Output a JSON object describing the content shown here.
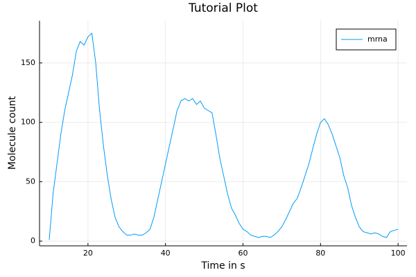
{
  "chart_data": {
    "type": "line",
    "title": "Tutorial Plot",
    "xlabel": "Time in s",
    "ylabel": "Molecule count",
    "x": [
      10,
      11,
      12,
      13,
      14,
      15,
      16,
      17,
      18,
      19,
      20,
      21,
      22,
      23,
      24,
      25,
      26,
      27,
      28,
      29,
      30,
      31,
      32,
      33,
      34,
      35,
      36,
      37,
      38,
      39,
      40,
      41,
      42,
      43,
      44,
      45,
      46,
      47,
      48,
      49,
      50,
      51,
      52,
      53,
      54,
      55,
      56,
      57,
      58,
      59,
      60,
      61,
      62,
      63,
      64,
      65,
      66,
      67,
      68,
      69,
      70,
      71,
      72,
      73,
      74,
      75,
      76,
      77,
      78,
      79,
      80,
      81,
      82,
      83,
      84,
      85,
      86,
      87,
      88,
      89,
      90,
      91,
      92,
      93,
      94,
      95,
      96,
      97,
      98,
      99,
      100
    ],
    "series": [
      {
        "name": "mrna",
        "color": "#009af9",
        "values": [
          1,
          40,
          65,
          90,
          110,
          125,
          140,
          160,
          168,
          165,
          172,
          175,
          150,
          110,
          80,
          55,
          35,
          20,
          12,
          8,
          5,
          5,
          6,
          5,
          5,
          7,
          10,
          20,
          35,
          50,
          65,
          80,
          95,
          110,
          118,
          120,
          118,
          120,
          115,
          118,
          112,
          110,
          108,
          90,
          70,
          55,
          40,
          28,
          22,
          15,
          10,
          8,
          5,
          4,
          3,
          4,
          4,
          3,
          5,
          8,
          12,
          18,
          25,
          32,
          36,
          45,
          55,
          65,
          78,
          90,
          100,
          103,
          98,
          90,
          80,
          70,
          55,
          45,
          30,
          20,
          12,
          8,
          7,
          6,
          7,
          6,
          4,
          3,
          8,
          9,
          10
        ]
      }
    ],
    "xlim": [
      7.5,
      102.3
    ],
    "ylim": [
      -4,
      185.5
    ],
    "xticks": [
      20,
      40,
      60,
      80,
      100
    ],
    "yticks": [
      0,
      50,
      100,
      150
    ],
    "grid": true,
    "legend": "top-right"
  }
}
